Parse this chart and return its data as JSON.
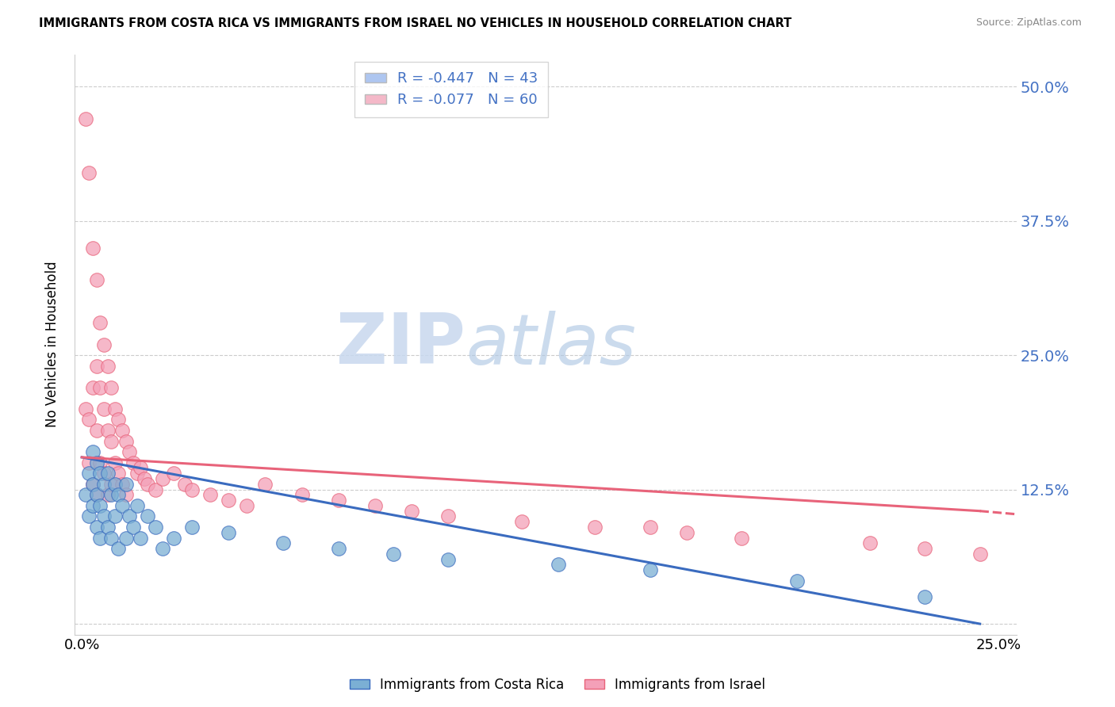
{
  "title": "IMMIGRANTS FROM COSTA RICA VS IMMIGRANTS FROM ISRAEL NO VEHICLES IN HOUSEHOLD CORRELATION CHART",
  "source": "Source: ZipAtlas.com",
  "ylabel": "No Vehicles in Household",
  "xlabel_bottom_left": "0.0%",
  "xlabel_bottom_right": "25.0%",
  "y_ticks": [
    0.0,
    0.125,
    0.25,
    0.375,
    0.5
  ],
  "y_tick_labels": [
    "",
    "12.5%",
    "25.0%",
    "37.5%",
    "50.0%"
  ],
  "x_lim": [
    -0.002,
    0.255
  ],
  "y_lim": [
    -0.01,
    0.53
  ],
  "legend1_color": "#aec6f0",
  "legend2_color": "#f4b8c8",
  "R1": -0.447,
  "N1": 43,
  "R2": -0.077,
  "N2": 60,
  "costa_rica_label": "Immigrants from Costa Rica",
  "israel_label": "Immigrants from Israel",
  "scatter_color_costa_rica": "#7bafd4",
  "scatter_color_israel": "#f4a0b8",
  "trendline_color_costa_rica": "#3a6bbf",
  "trendline_color_israel": "#e8637a",
  "watermark_zip": "ZIP",
  "watermark_atlas": "atlas",
  "costa_rica_x": [
    0.001,
    0.002,
    0.002,
    0.003,
    0.003,
    0.003,
    0.004,
    0.004,
    0.004,
    0.005,
    0.005,
    0.005,
    0.006,
    0.006,
    0.007,
    0.007,
    0.008,
    0.008,
    0.009,
    0.009,
    0.01,
    0.01,
    0.011,
    0.012,
    0.012,
    0.013,
    0.014,
    0.015,
    0.016,
    0.018,
    0.02,
    0.022,
    0.025,
    0.03,
    0.04,
    0.055,
    0.07,
    0.085,
    0.1,
    0.13,
    0.155,
    0.195,
    0.23
  ],
  "costa_rica_y": [
    0.12,
    0.14,
    0.1,
    0.16,
    0.13,
    0.11,
    0.15,
    0.12,
    0.09,
    0.14,
    0.11,
    0.08,
    0.13,
    0.1,
    0.14,
    0.09,
    0.12,
    0.08,
    0.13,
    0.1,
    0.12,
    0.07,
    0.11,
    0.13,
    0.08,
    0.1,
    0.09,
    0.11,
    0.08,
    0.1,
    0.09,
    0.07,
    0.08,
    0.09,
    0.085,
    0.075,
    0.07,
    0.065,
    0.06,
    0.055,
    0.05,
    0.04,
    0.025
  ],
  "israel_x": [
    0.001,
    0.001,
    0.002,
    0.002,
    0.002,
    0.003,
    0.003,
    0.003,
    0.004,
    0.004,
    0.004,
    0.004,
    0.005,
    0.005,
    0.005,
    0.006,
    0.006,
    0.006,
    0.007,
    0.007,
    0.007,
    0.008,
    0.008,
    0.008,
    0.009,
    0.009,
    0.01,
    0.01,
    0.011,
    0.011,
    0.012,
    0.012,
    0.013,
    0.014,
    0.015,
    0.016,
    0.017,
    0.018,
    0.02,
    0.022,
    0.025,
    0.028,
    0.03,
    0.035,
    0.04,
    0.045,
    0.05,
    0.06,
    0.07,
    0.08,
    0.09,
    0.1,
    0.12,
    0.14,
    0.155,
    0.165,
    0.18,
    0.215,
    0.23,
    0.245
  ],
  "israel_y": [
    0.47,
    0.2,
    0.42,
    0.19,
    0.15,
    0.35,
    0.22,
    0.13,
    0.32,
    0.24,
    0.18,
    0.12,
    0.28,
    0.22,
    0.15,
    0.26,
    0.2,
    0.14,
    0.24,
    0.18,
    0.12,
    0.22,
    0.17,
    0.13,
    0.2,
    0.15,
    0.19,
    0.14,
    0.18,
    0.13,
    0.17,
    0.12,
    0.16,
    0.15,
    0.14,
    0.145,
    0.135,
    0.13,
    0.125,
    0.135,
    0.14,
    0.13,
    0.125,
    0.12,
    0.115,
    0.11,
    0.13,
    0.12,
    0.115,
    0.11,
    0.105,
    0.1,
    0.095,
    0.09,
    0.09,
    0.085,
    0.08,
    0.075,
    0.07,
    0.065
  ],
  "trendline1_x0": 0.0,
  "trendline1_x1": 0.245,
  "trendline1_y0": 0.155,
  "trendline1_y1": 0.0,
  "trendline2_x0": 0.0,
  "trendline2_x1": 0.245,
  "trendline2_y0": 0.155,
  "trendline2_y1": 0.105,
  "trendline2_dash_x0": 0.245,
  "trendline2_dash_x1": 0.255,
  "trendline2_dash_y0": 0.105,
  "trendline2_dash_y1": 0.102
}
